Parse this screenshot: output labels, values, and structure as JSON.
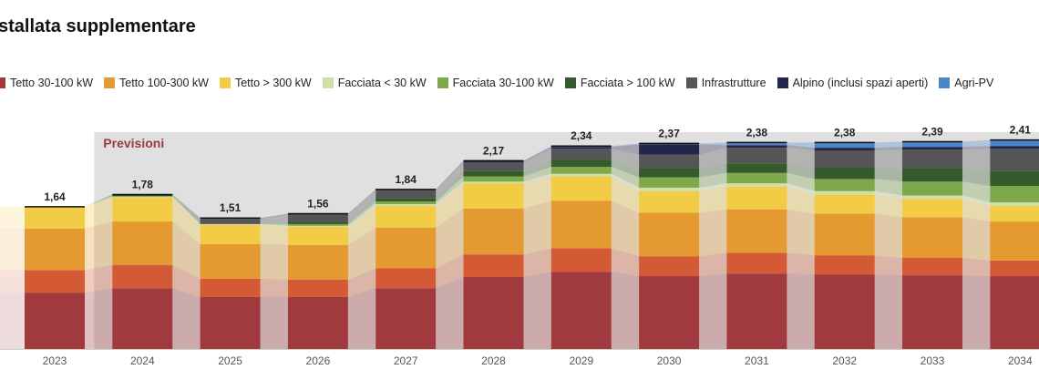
{
  "title": "stallata supplementare",
  "colors": {
    "forecast_band": "#d6d6d6",
    "baseline": "#cfcfcf",
    "forecast_label": "#9b3a3a",
    "total_label": "#222222",
    "axis_label": "#555555"
  },
  "chart_data": {
    "type": "bar",
    "stacked": true,
    "title": "stallata supplementare",
    "categories": [
      "2023",
      "2024",
      "2025",
      "2026",
      "2027",
      "2028",
      "2029",
      "2030",
      "2031",
      "2032",
      "2033",
      "2034"
    ],
    "totals": [
      1.64,
      1.78,
      1.51,
      1.56,
      1.84,
      2.17,
      2.34,
      2.37,
      2.38,
      2.38,
      2.39,
      2.41
    ],
    "total_labels": [
      "1,64",
      "1,78",
      "1,51",
      "1,56",
      "1,84",
      "2,17",
      "2,34",
      "2,37",
      "2,38",
      "2,38",
      "2,39",
      "2,41"
    ],
    "ylim": [
      0,
      2.5
    ],
    "annotation": {
      "text": "Previsioni",
      "from_category": "2024"
    },
    "series": [
      {
        "name": "Tetto 30-100 kW",
        "color": "#a03a3e",
        "values": [
          0.65,
          0.7,
          0.6,
          0.6,
          0.7,
          0.83,
          0.89,
          0.84,
          0.87,
          0.86,
          0.85,
          0.84
        ]
      },
      {
        "name": "Tetto 100-300 kW",
        "color": "#d35a35",
        "values": [
          0.26,
          0.27,
          0.21,
          0.2,
          0.23,
          0.26,
          0.27,
          0.23,
          0.24,
          0.22,
          0.2,
          0.18
        ]
      },
      {
        "name": "Tetto > 300 kW",
        "color": "#e49a30",
        "values": [
          0.48,
          0.5,
          0.4,
          0.4,
          0.47,
          0.53,
          0.55,
          0.5,
          0.5,
          0.48,
          0.47,
          0.45
        ]
      },
      {
        "name": "Facciata < 30 kW",
        "color": "#f2cc45",
        "values": [
          0.25,
          0.28,
          0.22,
          0.21,
          0.25,
          0.29,
          0.28,
          0.25,
          0.26,
          0.22,
          0.21,
          0.18
        ]
      },
      {
        "name": "Facciata 30-100 kW",
        "color": "#cfe0a6",
        "values": [
          0,
          0.01,
          0.01,
          0.01,
          0.02,
          0.02,
          0.03,
          0.04,
          0.04,
          0.04,
          0.04,
          0.04
        ]
      },
      {
        "name": "Facciata > 100 kW",
        "color": "#7fa84d",
        "values": [
          0,
          0,
          0,
          0.02,
          0.03,
          0.06,
          0.08,
          0.12,
          0.12,
          0.14,
          0.16,
          0.19
        ]
      },
      {
        "name": "Infrastrutture",
        "color": "#355a2b",
        "values": [
          0,
          0.02,
          0,
          0.02,
          0.04,
          0.06,
          0.08,
          0.1,
          0.11,
          0.13,
          0.15,
          0.17
        ]
      },
      {
        "name": "Alpino (inclusi spazi aperti)",
        "color": "#555555",
        "values": [
          0,
          0,
          0.06,
          0.09,
          0.09,
          0.1,
          0.13,
          0.16,
          0.18,
          0.2,
          0.22,
          0.26
        ]
      },
      {
        "name": "Agri-PV",
        "color": "#22254a",
        "values": [
          0,
          0,
          0.01,
          0.01,
          0.01,
          0.02,
          0.02,
          0.12,
          0.03,
          0.03,
          0.03,
          0.03
        ]
      },
      {
        "name": "",
        "color": "#4a86c8",
        "values": [
          0,
          0,
          0,
          0,
          0,
          0,
          0.01,
          0.01,
          0.03,
          0.06,
          0.06,
          0.07
        ]
      }
    ]
  }
}
